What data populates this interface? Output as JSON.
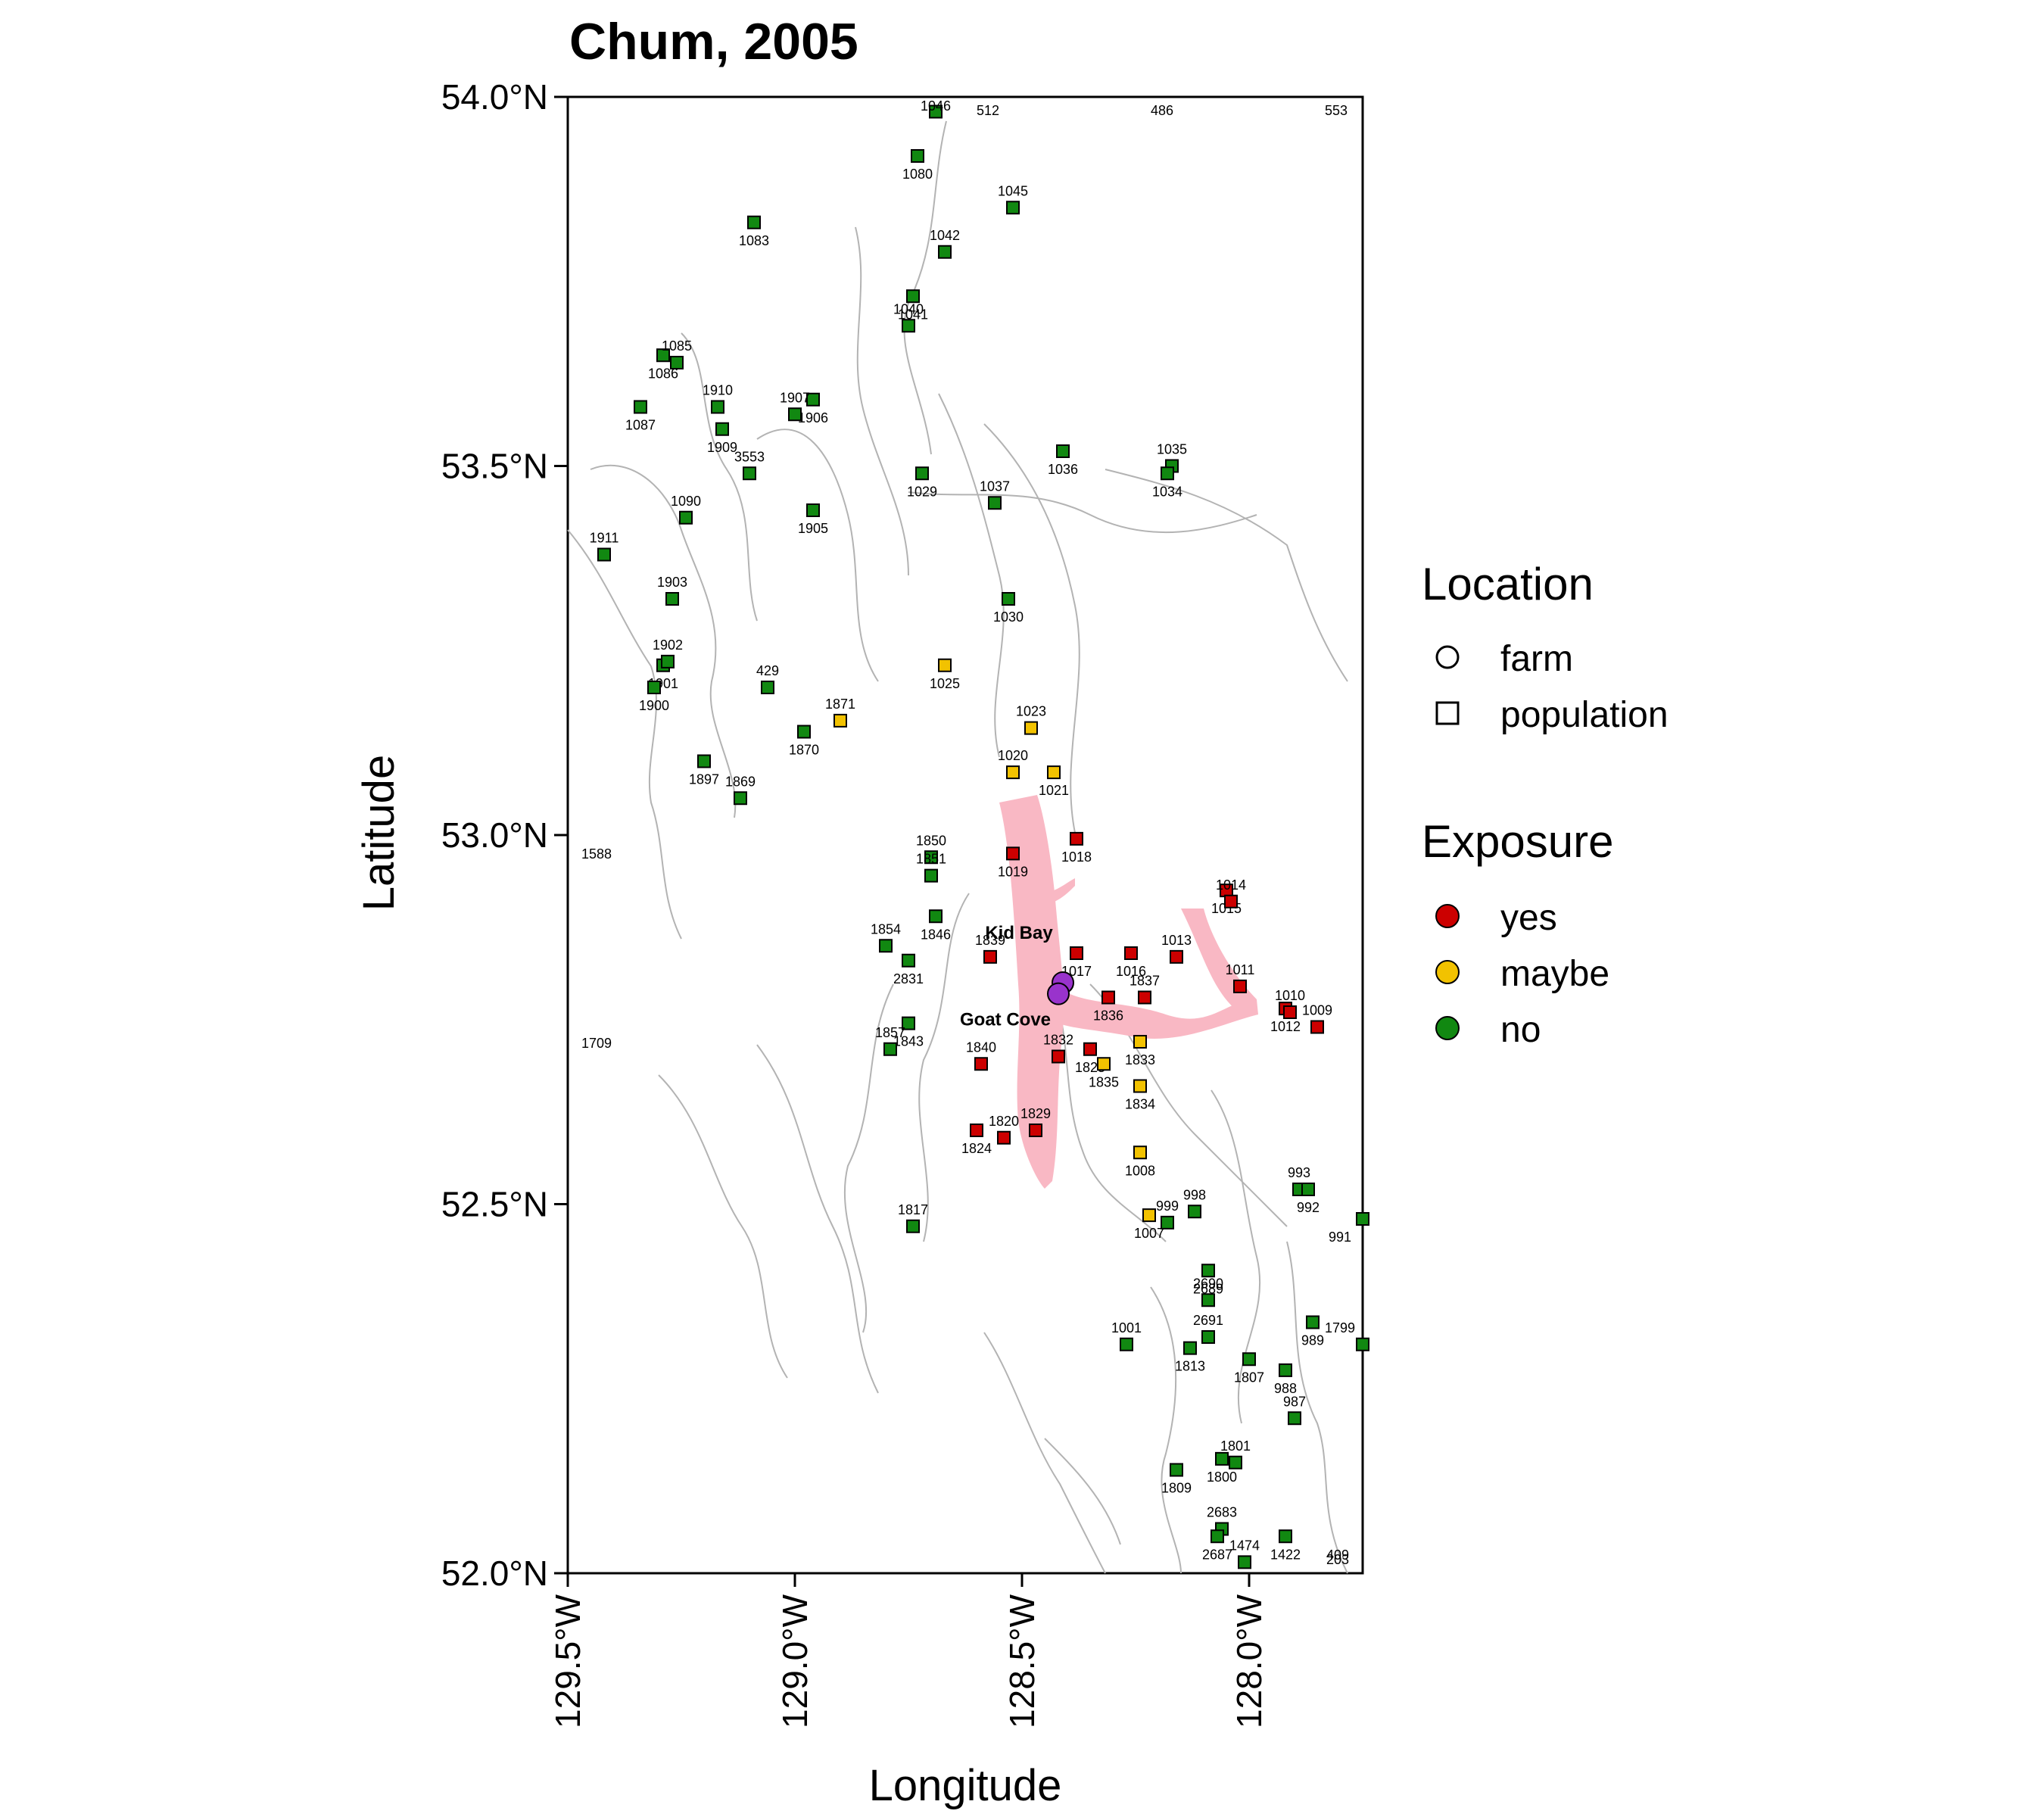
{
  "title": "Chum, 2005",
  "x_axis": {
    "label": "Longitude",
    "ticks": [
      "129.5°W",
      "129.0°W",
      "128.5°W",
      "128.0°W"
    ],
    "values": [
      -129.5,
      -129.0,
      -128.5,
      -128.0
    ]
  },
  "y_axis": {
    "label": "Latitude",
    "ticks": [
      "54.0°N",
      "53.5°N",
      "53.0°N",
      "52.5°N",
      "52.0°N"
    ],
    "values": [
      54.0,
      53.5,
      53.0,
      52.5,
      52.0
    ]
  },
  "extent": {
    "lon_min": -129.5,
    "lon_max": -127.75,
    "lat_min": 52.0,
    "lat_max": 54.0
  },
  "legend": {
    "location_title": "Location",
    "location_items": [
      {
        "label": "farm",
        "shape": "circle"
      },
      {
        "label": "population",
        "shape": "square"
      }
    ],
    "exposure_title": "Exposure",
    "exposure_items": [
      {
        "label": "yes",
        "color": "#cc0000"
      },
      {
        "label": "maybe",
        "color": "#f2c200"
      },
      {
        "label": "no",
        "color": "#118811"
      }
    ]
  },
  "colors": {
    "yes": "#cc0000",
    "maybe": "#f2c200",
    "no": "#118811",
    "farm": "#9933cc",
    "coast": "#b3b3b3",
    "exposure_zone": "#f9b8c4"
  },
  "farms": [
    {
      "name": "Kid Bay",
      "lon": -128.41,
      "lat": 52.8
    },
    {
      "name": "Goat Cove",
      "lon": -128.42,
      "lat": 52.785
    }
  ],
  "edge_labels": [
    "512",
    "486",
    "553",
    "1588",
    "1709",
    "409",
    "203"
  ],
  "populations": [
    {
      "id": "1046",
      "lon": -128.69,
      "lat": 53.98,
      "e": "no"
    },
    {
      "id": "1080",
      "lon": -128.73,
      "lat": 53.92,
      "e": "no"
    },
    {
      "id": "1045",
      "lon": -128.52,
      "lat": 53.85,
      "e": "no"
    },
    {
      "id": "1083",
      "lon": -129.09,
      "lat": 53.83,
      "e": "no"
    },
    {
      "id": "1042",
      "lon": -128.67,
      "lat": 53.79,
      "e": "no"
    },
    {
      "id": "1041",
      "lon": -128.74,
      "lat": 53.73,
      "e": "no"
    },
    {
      "id": "1040",
      "lon": -128.75,
      "lat": 53.69,
      "e": "no"
    },
    {
      "id": "1086",
      "lon": -129.29,
      "lat": 53.65,
      "e": "no"
    },
    {
      "id": "1085",
      "lon": -129.26,
      "lat": 53.64,
      "e": "no"
    },
    {
      "id": "1087",
      "lon": -129.34,
      "lat": 53.58,
      "e": "no"
    },
    {
      "id": "1910",
      "lon": -129.17,
      "lat": 53.58,
      "e": "no"
    },
    {
      "id": "1906",
      "lon": -128.96,
      "lat": 53.59,
      "e": "no"
    },
    {
      "id": "1907",
      "lon": -129.0,
      "lat": 53.57,
      "e": "no"
    },
    {
      "id": "1909",
      "lon": -129.16,
      "lat": 53.55,
      "e": "no"
    },
    {
      "id": "3553",
      "lon": -129.1,
      "lat": 53.49,
      "e": "no"
    },
    {
      "id": "1029",
      "lon": -128.72,
      "lat": 53.49,
      "e": "no"
    },
    {
      "id": "1037",
      "lon": -128.56,
      "lat": 53.45,
      "e": "no"
    },
    {
      "id": "1036",
      "lon": -128.41,
      "lat": 53.52,
      "e": "no"
    },
    {
      "id": "1035",
      "lon": -128.17,
      "lat": 53.5,
      "e": "no"
    },
    {
      "id": "1034",
      "lon": -128.18,
      "lat": 53.49,
      "e": "no"
    },
    {
      "id": "1090",
      "lon": -129.24,
      "lat": 53.43,
      "e": "no"
    },
    {
      "id": "1905",
      "lon": -128.96,
      "lat": 53.44,
      "e": "no"
    },
    {
      "id": "1911",
      "lon": -129.42,
      "lat": 53.38,
      "e": "no"
    },
    {
      "id": "1030",
      "lon": -128.53,
      "lat": 53.32,
      "e": "no"
    },
    {
      "id": "1903",
      "lon": -129.27,
      "lat": 53.32,
      "e": "no"
    },
    {
      "id": "1901",
      "lon": -129.29,
      "lat": 53.23,
      "e": "no"
    },
    {
      "id": "1902",
      "lon": -129.28,
      "lat": 53.235,
      "e": "no"
    },
    {
      "id": "1900",
      "lon": -129.31,
      "lat": 53.2,
      "e": "no"
    },
    {
      "id": "429",
      "lon": -129.06,
      "lat": 53.2,
      "e": "no"
    },
    {
      "id": "1025",
      "lon": -128.67,
      "lat": 53.23,
      "e": "maybe"
    },
    {
      "id": "1871",
      "lon": -128.9,
      "lat": 53.155,
      "e": "maybe"
    },
    {
      "id": "1870",
      "lon": -128.98,
      "lat": 53.14,
      "e": "no"
    },
    {
      "id": "1023",
      "lon": -128.48,
      "lat": 53.145,
      "e": "maybe"
    },
    {
      "id": "1897",
      "lon": -129.2,
      "lat": 53.1,
      "e": "no"
    },
    {
      "id": "1020",
      "lon": -128.52,
      "lat": 53.085,
      "e": "maybe"
    },
    {
      "id": "1021",
      "lon": -128.43,
      "lat": 53.085,
      "e": "maybe"
    },
    {
      "id": "1869",
      "lon": -129.12,
      "lat": 53.05,
      "e": "no"
    },
    {
      "id": "1018",
      "lon": -128.38,
      "lat": 52.995,
      "e": "yes"
    },
    {
      "id": "1850",
      "lon": -128.7,
      "lat": 52.97,
      "e": "no"
    },
    {
      "id": "1019",
      "lon": -128.52,
      "lat": 52.975,
      "e": "yes"
    },
    {
      "id": "1851",
      "lon": -128.7,
      "lat": 52.945,
      "e": "no"
    },
    {
      "id": "1015",
      "lon": -128.05,
      "lat": 52.925,
      "e": "yes"
    },
    {
      "id": "1014",
      "lon": -128.04,
      "lat": 52.91,
      "e": "yes"
    },
    {
      "id": "1846",
      "lon": -128.69,
      "lat": 52.89,
      "e": "no"
    },
    {
      "id": "1854",
      "lon": -128.8,
      "lat": 52.85,
      "e": "no"
    },
    {
      "id": "1016",
      "lon": -128.26,
      "lat": 52.84,
      "e": "yes"
    },
    {
      "id": "1013",
      "lon": -128.16,
      "lat": 52.835,
      "e": "yes"
    },
    {
      "id": "1017",
      "lon": -128.38,
      "lat": 52.84,
      "e": "yes"
    },
    {
      "id": "1839",
      "lon": -128.57,
      "lat": 52.835,
      "e": "yes"
    },
    {
      "id": "2831",
      "lon": -128.75,
      "lat": 52.83,
      "e": "no"
    },
    {
      "id": "1011",
      "lon": -128.02,
      "lat": 52.795,
      "e": "yes"
    },
    {
      "id": "1836",
      "lon": -128.31,
      "lat": 52.78,
      "e": "yes"
    },
    {
      "id": "1837",
      "lon": -128.23,
      "lat": 52.78,
      "e": "yes"
    },
    {
      "id": "1012",
      "lon": -127.92,
      "lat": 52.765,
      "e": "yes"
    },
    {
      "id": "1010",
      "lon": -127.91,
      "lat": 52.76,
      "e": "yes"
    },
    {
      "id": "1843",
      "lon": -128.75,
      "lat": 52.745,
      "e": "no"
    },
    {
      "id": "1009",
      "lon": -127.85,
      "lat": 52.74,
      "e": "yes"
    },
    {
      "id": "1833",
      "lon": -128.24,
      "lat": 52.72,
      "e": "maybe"
    },
    {
      "id": "1857",
      "lon": -128.79,
      "lat": 52.71,
      "e": "no"
    },
    {
      "id": "1825",
      "lon": -128.35,
      "lat": 52.71,
      "e": "yes"
    },
    {
      "id": "1832",
      "lon": -128.42,
      "lat": 52.7,
      "e": "yes"
    },
    {
      "id": "1835",
      "lon": -128.32,
      "lat": 52.69,
      "e": "maybe"
    },
    {
      "id": "1840",
      "lon": -128.59,
      "lat": 52.69,
      "e": "yes"
    },
    {
      "id": "1834",
      "lon": -128.24,
      "lat": 52.66,
      "e": "maybe"
    },
    {
      "id": "1829",
      "lon": -128.47,
      "lat": 52.6,
      "e": "yes"
    },
    {
      "id": "1824",
      "lon": -128.6,
      "lat": 52.6,
      "e": "yes"
    },
    {
      "id": "1820",
      "lon": -128.54,
      "lat": 52.59,
      "e": "yes"
    },
    {
      "id": "1008",
      "lon": -128.24,
      "lat": 52.57,
      "e": "maybe"
    },
    {
      "id": "993",
      "lon": -127.89,
      "lat": 52.52,
      "e": "no"
    },
    {
      "id": "992",
      "lon": -127.87,
      "lat": 52.52,
      "e": "no"
    },
    {
      "id": "998",
      "lon": -128.12,
      "lat": 52.49,
      "e": "no"
    },
    {
      "id": "1007",
      "lon": -128.22,
      "lat": 52.485,
      "e": "maybe"
    },
    {
      "id": "999",
      "lon": -128.18,
      "lat": 52.475,
      "e": "no"
    },
    {
      "id": "991",
      "lon": -127.75,
      "lat": 52.48,
      "e": "no"
    },
    {
      "id": "1817",
      "lon": -128.74,
      "lat": 52.47,
      "e": "no"
    },
    {
      "id": "2689",
      "lon": -128.09,
      "lat": 52.41,
      "e": "no"
    },
    {
      "id": "2690",
      "lon": -128.09,
      "lat": 52.37,
      "e": "no"
    },
    {
      "id": "989",
      "lon": -127.86,
      "lat": 52.34,
      "e": "no"
    },
    {
      "id": "1001",
      "lon": -128.27,
      "lat": 52.31,
      "e": "no"
    },
    {
      "id": "1813",
      "lon": -128.13,
      "lat": 52.305,
      "e": "no"
    },
    {
      "id": "2691",
      "lon": -128.09,
      "lat": 52.32,
      "e": "no"
    },
    {
      "id": "1807",
      "lon": -128.0,
      "lat": 52.29,
      "e": "no"
    },
    {
      "id": "1799",
      "lon": -127.75,
      "lat": 52.31,
      "e": "no"
    },
    {
      "id": "988",
      "lon": -127.92,
      "lat": 52.275,
      "e": "no"
    },
    {
      "id": "987",
      "lon": -127.9,
      "lat": 52.21,
      "e": "no"
    },
    {
      "id": "1800",
      "lon": -128.06,
      "lat": 52.155,
      "e": "no"
    },
    {
      "id": "1801",
      "lon": -128.03,
      "lat": 52.15,
      "e": "no"
    },
    {
      "id": "1809",
      "lon": -128.16,
      "lat": 52.14,
      "e": "no"
    },
    {
      "id": "2683",
      "lon": -128.06,
      "lat": 52.06,
      "e": "no"
    },
    {
      "id": "2687",
      "lon": -128.07,
      "lat": 52.05,
      "e": "no"
    },
    {
      "id": "1474",
      "lon": -128.01,
      "lat": 52.015,
      "e": "no"
    },
    {
      "id": "1422",
      "lon": -127.92,
      "lat": 52.05,
      "e": "no"
    }
  ]
}
